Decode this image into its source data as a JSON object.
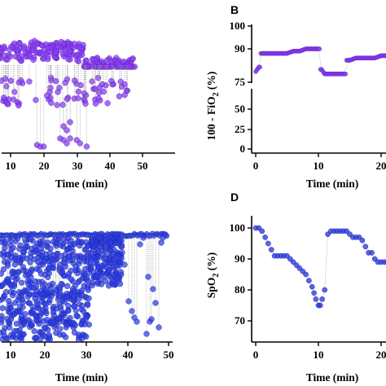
{
  "chart_data": [
    {
      "panel": "",
      "type": "scatter",
      "xlabel": "Time (min)",
      "ylabel": "",
      "x_ticks": [
        "10",
        "20",
        "30",
        "40",
        "50"
      ],
      "xlim": [
        0,
        52
      ],
      "color": "#8a3ff0",
      "series": [
        {
          "band_high": [
            [
              0,
              73
            ],
            [
              32,
              73
            ],
            [
              33,
              79
            ],
            [
              42,
              76
            ],
            [
              48,
              79
            ]
          ],
          "band_low": [
            [
              2,
              100
            ],
            [
              8,
              102
            ],
            [
              14,
              97
            ],
            [
              24,
              100
            ],
            [
              30,
              104
            ],
            [
              36,
              108
            ],
            [
              44,
              104
            ],
            [
              48,
              121
            ]
          ],
          "drops": [
            [
              18,
              178
            ],
            [
              20,
              180
            ],
            [
              25,
              170
            ],
            [
              27,
              176
            ],
            [
              30,
              172
            ],
            [
              32,
              180
            ]
          ]
        }
      ]
    },
    {
      "panel": "B",
      "type": "line",
      "xlabel": "Time (min)",
      "ylabel": "100 - FiO",
      "ylabel_sub": "2",
      "ylabel_unit": " (%)",
      "y_ticks_upper": [
        "100",
        "90"
      ],
      "y_ticks_lower": [
        "75",
        "50",
        "25",
        "0"
      ],
      "x_ticks": [
        "0",
        "10",
        "20"
      ],
      "color": "#8a3ff0",
      "x": [
        0,
        0.5,
        1,
        2,
        3,
        4,
        5,
        6,
        7,
        8,
        9,
        10,
        10.5,
        11,
        12,
        13,
        14,
        15,
        16,
        17,
        18,
        19,
        20,
        21,
        22
      ],
      "y": [
        80,
        82,
        88,
        88,
        88,
        88,
        88,
        89,
        89,
        90,
        90,
        90,
        81,
        79,
        79,
        79,
        79,
        85,
        86,
        86,
        86,
        86,
        87,
        87,
        87
      ]
    },
    {
      "panel": "",
      "type": "scatter",
      "xlabel": "Time (min)",
      "ylabel": "",
      "x_ticks": [
        "10",
        "20",
        "30",
        "40",
        "50"
      ],
      "color": "#2d3be0",
      "cap_points_x": [
        0,
        50
      ],
      "cap_value": "top"
    },
    {
      "panel": "D",
      "type": "line",
      "xlabel": "Time (min)",
      "ylabel": "SpO",
      "ylabel_sub": "2",
      "ylabel_unit": " (%)",
      "y_ticks": [
        "100",
        "90",
        "80",
        "70"
      ],
      "x_ticks": [
        "0",
        "10",
        "20"
      ],
      "ylim": [
        66,
        104
      ],
      "xlim": [
        0,
        22
      ],
      "color": "#2d3be0",
      "x": [
        0,
        0.5,
        1,
        1.5,
        2,
        2.5,
        3,
        3.5,
        4,
        4.5,
        5,
        5.5,
        6,
        6.5,
        7,
        7.5,
        8,
        8.5,
        9,
        9.3,
        9.6,
        10,
        10.3,
        10.6,
        11,
        11.5,
        12,
        12.5,
        13,
        13.5,
        14,
        14.5,
        15,
        15.5,
        16,
        16.5,
        17,
        17.5,
        18,
        18.5,
        19,
        19.5,
        20,
        20.5,
        21
      ],
      "y": [
        100,
        100,
        99,
        97,
        95,
        93,
        91,
        91,
        91,
        91,
        91,
        90,
        89,
        88,
        87,
        86,
        85,
        83,
        81,
        79,
        77,
        75,
        75,
        77,
        80,
        98,
        99,
        99,
        99,
        99,
        99,
        99,
        98,
        97,
        97,
        97,
        96,
        94,
        92,
        92,
        90,
        89,
        89,
        89,
        89
      ]
    }
  ]
}
